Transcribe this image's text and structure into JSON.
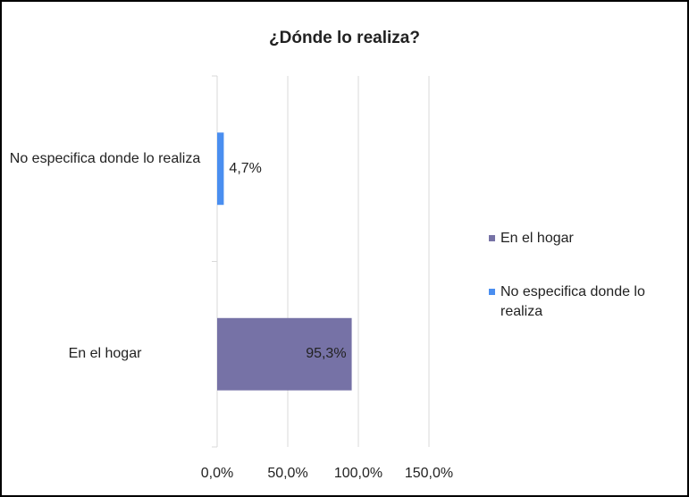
{
  "chart_data": {
    "type": "bar",
    "orientation": "horizontal",
    "title": "¿Dónde lo realiza?",
    "categories": [
      "En el hogar",
      "No especifica donde lo realiza"
    ],
    "values": [
      95.3,
      4.7
    ],
    "value_labels": [
      "95,3%",
      "4,7%"
    ],
    "colors": [
      "#7672a6",
      "#4a8ef0"
    ],
    "xlim": [
      0,
      150
    ],
    "xticks": [
      {
        "value": 0,
        "label": "0,0%"
      },
      {
        "value": 50,
        "label": "50,0%"
      },
      {
        "value": 100,
        "label": "100,0%"
      },
      {
        "value": 150,
        "label": "150,0%"
      }
    ],
    "grid": true,
    "legend": "right"
  }
}
